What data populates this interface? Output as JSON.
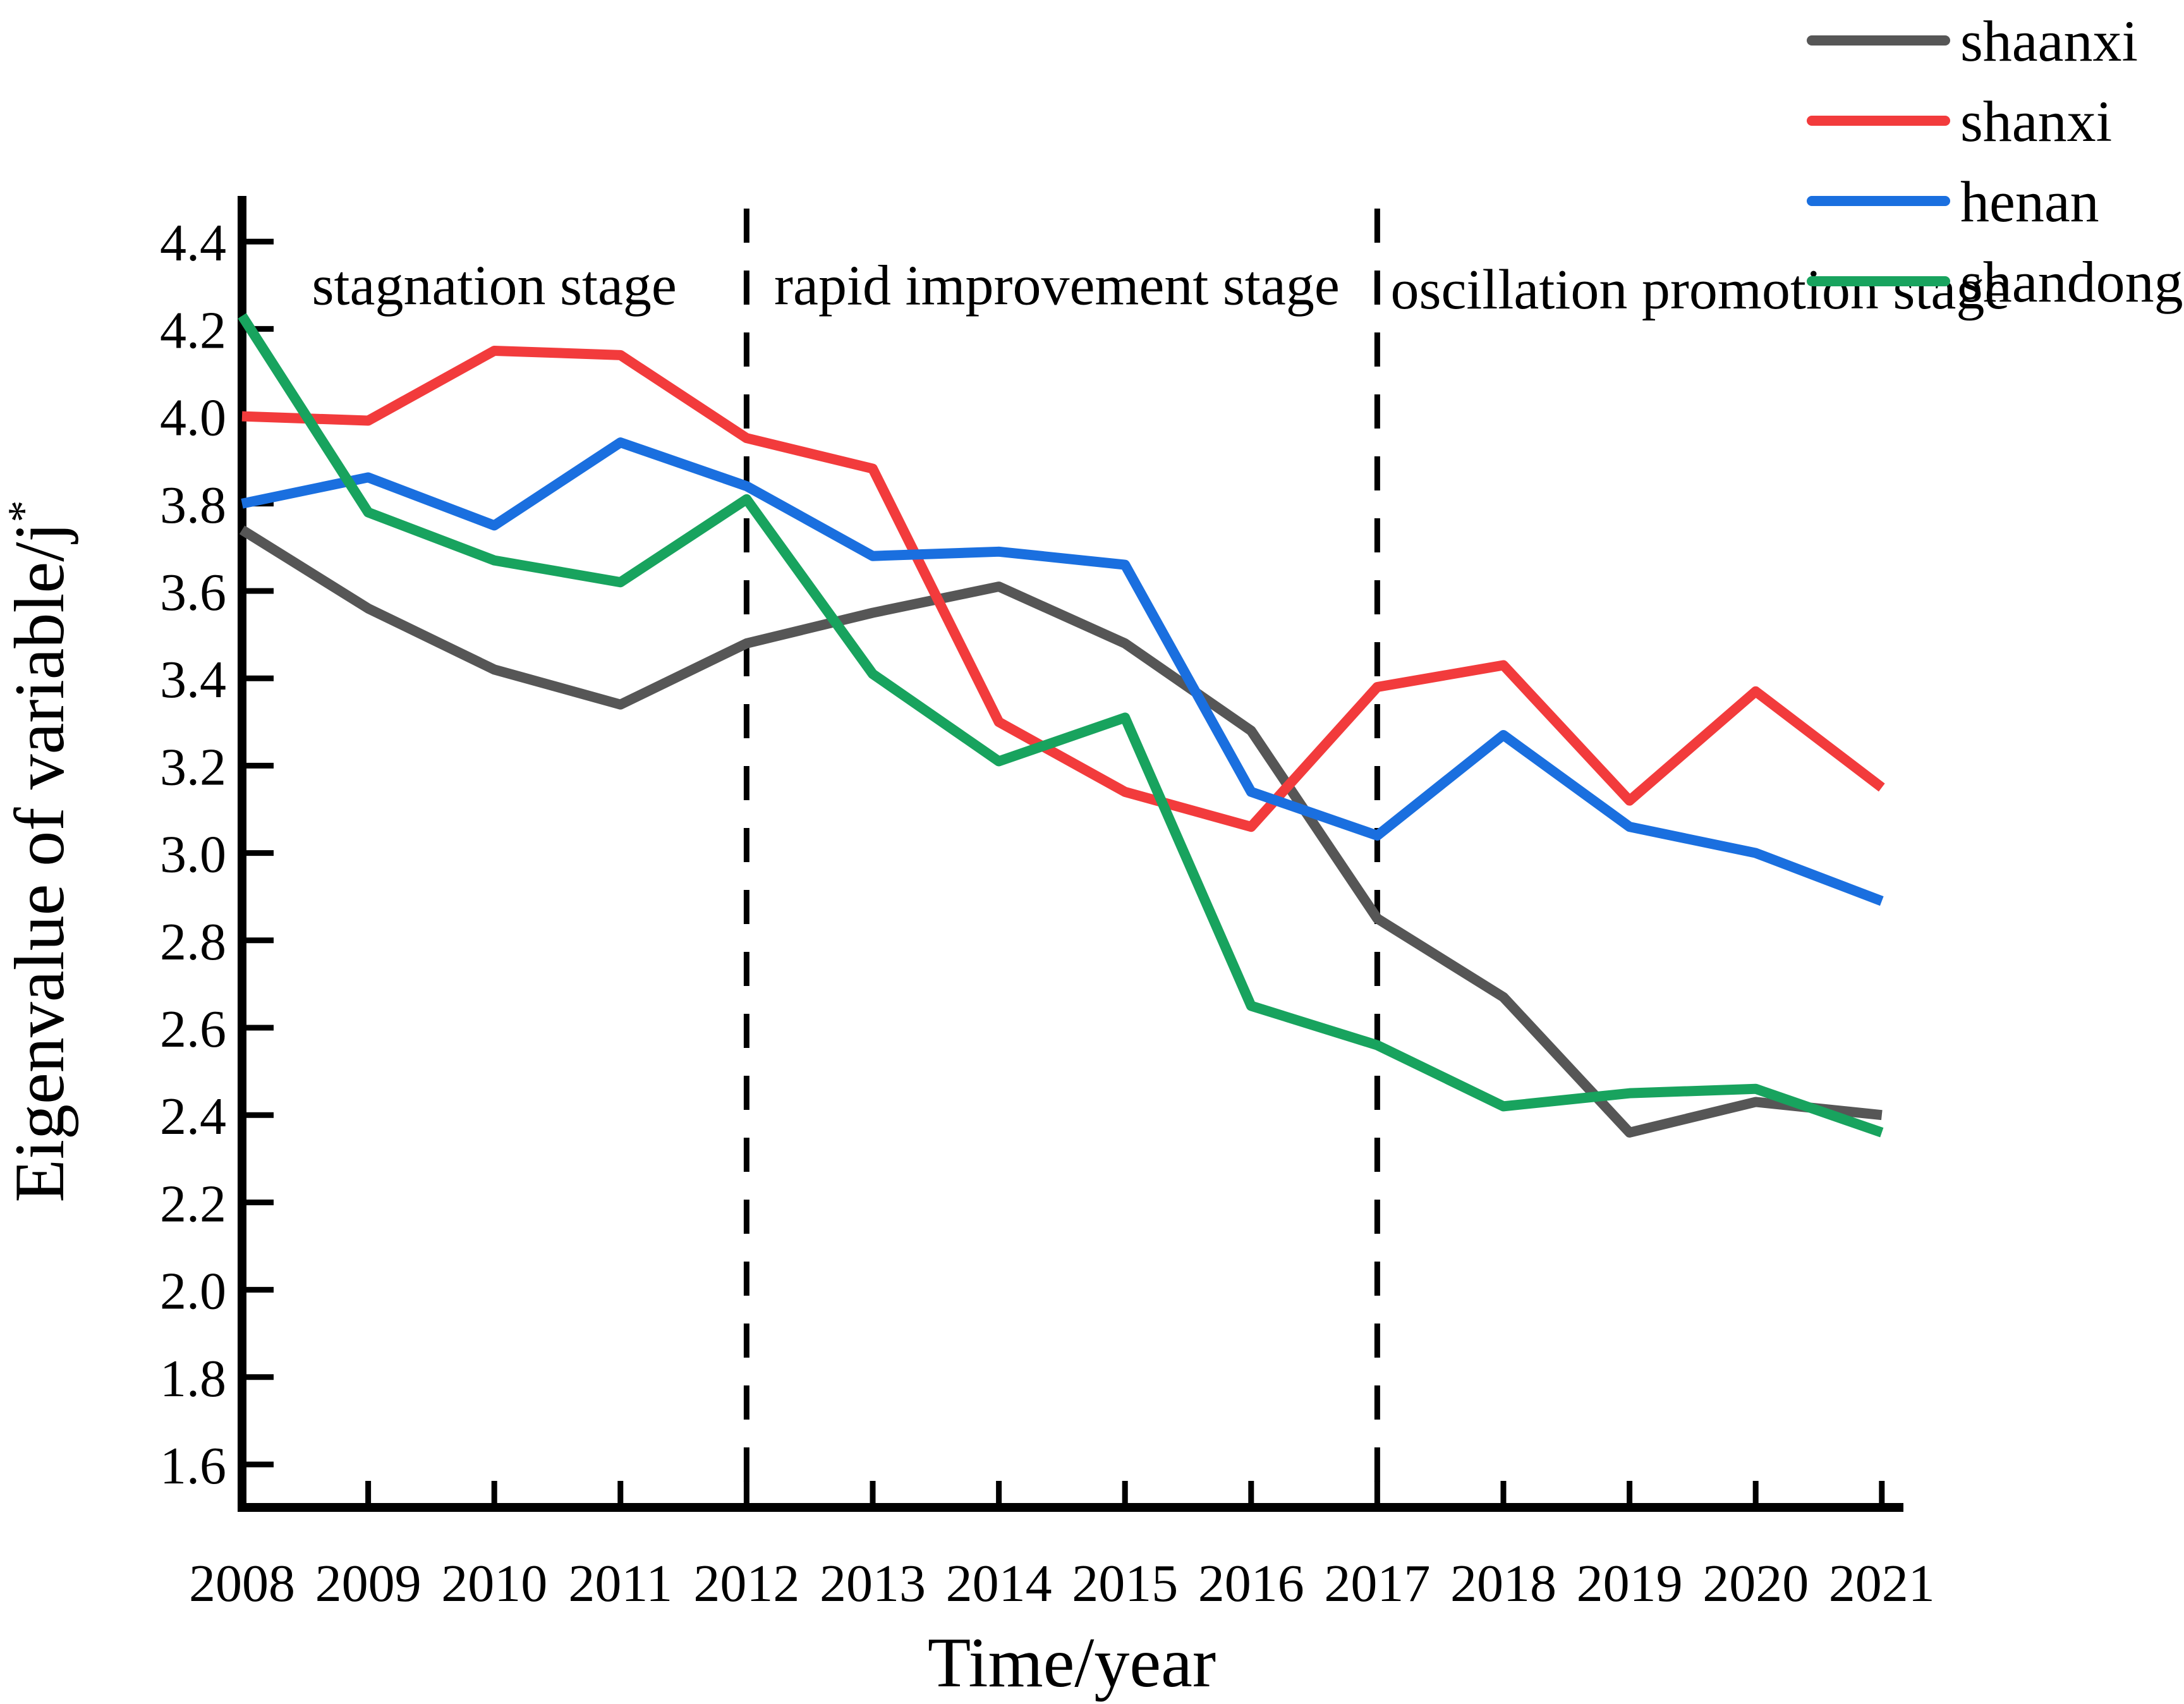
{
  "chart_data": {
    "type": "line",
    "title": "",
    "xlabel": "Time/year",
    "ylabel": "Eigenvalue of variable/j",
    "ylabel_superscript": "*",
    "x": [
      2008,
      2009,
      2010,
      2011,
      2012,
      2013,
      2014,
      2015,
      2016,
      2017,
      2018,
      2019,
      2020,
      2021
    ],
    "series": [
      {
        "name": "shaanxi",
        "color": "#565656",
        "values": [
          3.74,
          3.56,
          3.42,
          3.34,
          3.48,
          3.55,
          3.61,
          3.48,
          3.28,
          2.85,
          2.67,
          2.36,
          2.43,
          2.4
        ]
      },
      {
        "name": "shanxi",
        "color": "#F23B3C",
        "values": [
          4.0,
          3.99,
          4.15,
          4.14,
          3.95,
          3.88,
          3.3,
          3.14,
          3.06,
          3.38,
          3.43,
          3.12,
          3.37,
          3.15
        ]
      },
      {
        "name": "henan",
        "color": "#1A6FDF",
        "values": [
          3.8,
          3.86,
          3.75,
          3.94,
          3.84,
          3.68,
          3.69,
          3.66,
          3.14,
          3.04,
          3.27,
          3.06,
          3.0,
          2.89
        ]
      },
      {
        "name": "shandong",
        "color": "#18A35E",
        "values": [
          4.23,
          3.78,
          3.67,
          3.62,
          3.81,
          3.41,
          3.21,
          3.31,
          2.65,
          2.56,
          2.42,
          2.45,
          2.46,
          2.36
        ]
      }
    ],
    "yticks": [
      1.6,
      1.8,
      2.0,
      2.2,
      2.4,
      2.6,
      2.8,
      3.0,
      3.2,
      3.4,
      3.6,
      3.8,
      4.0,
      4.2,
      4.4
    ],
    "ylim": [
      1.5,
      4.5
    ],
    "xlim": [
      2008,
      2021.2
    ],
    "grid": false,
    "legend_position": "top-right",
    "dividers": [
      {
        "x": 2012,
        "style": "dashed"
      },
      {
        "x": 2017,
        "style": "dashed"
      }
    ],
    "annotations": [
      {
        "text": "stagnation stage",
        "x_year": 2010.0,
        "y_value": 4.3
      },
      {
        "text": "rapid improvement stage",
        "x_year": 2014.46,
        "y_value": 4.3
      },
      {
        "text": "oscillation promotion stage",
        "x_year": 2019.56,
        "y_value": 4.29
      }
    ]
  }
}
